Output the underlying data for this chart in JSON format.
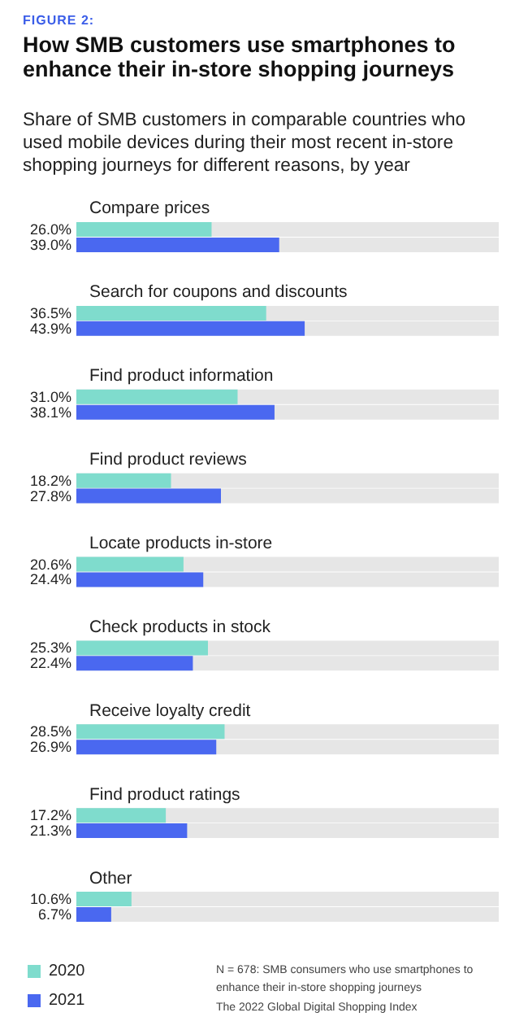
{
  "chart_data": {
    "type": "bar",
    "orientation": "horizontal",
    "title": "How SMB customers use smartphones to enhance their in-store shopping journeys",
    "subtitle": "Share of SMB customers in comparable countries who used mobile devices during their most recent in-store shopping journeys for different reasons, by year",
    "annotations": [
      "FIGURE 2:",
      "N = 678: SMB consumers who use smartphones to enhance their in-store shopping journeys",
      "The 2022 Global Digital Shopping Index"
    ],
    "categories": [
      "Compare prices",
      "Search for coupons and discounts",
      "Find product information",
      "Find product reviews",
      "Locate products in-store",
      "Check products in stock",
      "Receive loyalty credit",
      "Find product ratings",
      "Other"
    ],
    "series": [
      {
        "name": "2020",
        "color": "#7fdccd",
        "values": [
          26.0,
          36.5,
          31.0,
          18.2,
          20.6,
          25.3,
          28.5,
          17.2,
          10.6
        ],
        "value_labels": [
          "26.0%",
          "36.5%",
          "31.0%",
          "18.2%",
          "20.6%",
          "25.3%",
          "28.5%",
          "17.2%",
          "10.6%"
        ]
      },
      {
        "name": "2021",
        "color": "#4a68f0",
        "values": [
          39.0,
          43.9,
          38.1,
          27.8,
          24.4,
          22.4,
          26.9,
          21.3,
          6.7
        ],
        "value_labels": [
          "39.0%",
          "43.9%",
          "38.1%",
          "27.8%",
          "24.4%",
          "22.4%",
          "26.9%",
          "21.3%",
          "6.7%"
        ]
      }
    ],
    "tick_labels": "y",
    "legend": "bottom left"
  }
}
